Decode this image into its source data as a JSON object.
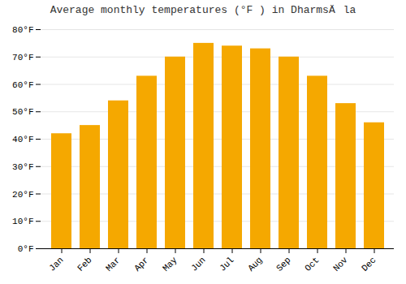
{
  "chart_data": {
    "type": "bar",
    "title": "Average monthly temperatures (°F ) in DharmsÄla",
    "categories": [
      "Jan",
      "Feb",
      "Mar",
      "Apr",
      "May",
      "Jun",
      "Jul",
      "Aug",
      "Sep",
      "Oct",
      "Nov",
      "Dec"
    ],
    "values": [
      42,
      45,
      54,
      63,
      70,
      75,
      74,
      73,
      70,
      63,
      53,
      46
    ],
    "color": "#F5A800",
    "ylim": [
      0,
      80
    ],
    "yticks": [
      {
        "value": 0,
        "label": "0°F"
      },
      {
        "value": 10,
        "label": "10°F"
      },
      {
        "value": 20,
        "label": "20°F"
      },
      {
        "value": 30,
        "label": "30°F"
      },
      {
        "value": 40,
        "label": "40°F"
      },
      {
        "value": 50,
        "label": "50°F"
      },
      {
        "value": 60,
        "label": "60°F"
      },
      {
        "value": 70,
        "label": "70°F"
      },
      {
        "value": 80,
        "label": "80°F"
      }
    ],
    "grid": true
  }
}
